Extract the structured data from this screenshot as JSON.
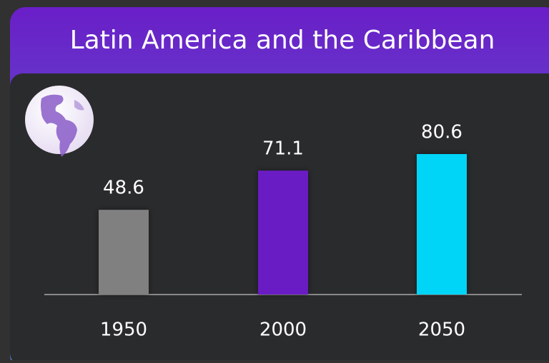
{
  "chart_data": {
    "type": "bar",
    "title": "Latin America and the Caribbean",
    "categories": [
      "1950",
      "2000",
      "2050"
    ],
    "values": [
      48.6,
      71.1,
      80.6
    ],
    "colors": [
      "#808080",
      "#6b1ac4",
      "#00d4f7"
    ]
  }
}
